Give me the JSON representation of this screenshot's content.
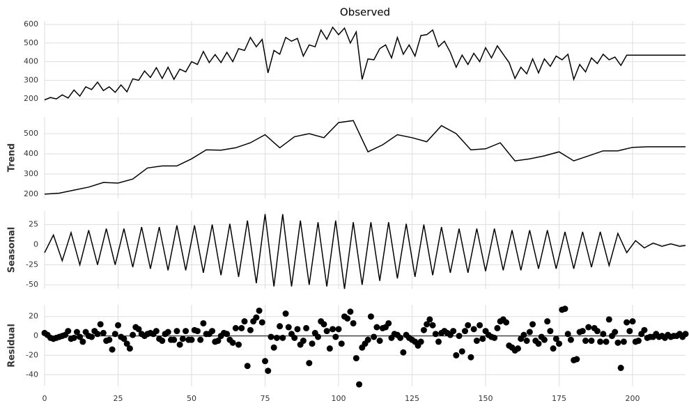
{
  "chart_data": [
    {
      "type": "line",
      "title": "Observed",
      "color": "#000000",
      "x": [
        0,
        2,
        4,
        6,
        8,
        10,
        12,
        14,
        16,
        18,
        20,
        22,
        24,
        26,
        28,
        30,
        32,
        34,
        36,
        38,
        40,
        42,
        44,
        46,
        48,
        50,
        52,
        54,
        56,
        58,
        60,
        62,
        64,
        66,
        68,
        70,
        72,
        74,
        76,
        78,
        80,
        82,
        84,
        86,
        88,
        90,
        92,
        94,
        96,
        98,
        100,
        102,
        104,
        106,
        108,
        110,
        112,
        114,
        116,
        118,
        120,
        122,
        124,
        126,
        128,
        130,
        132,
        134,
        136,
        138,
        140,
        142,
        144,
        146,
        148,
        150,
        152,
        154,
        156,
        158,
        160,
        162,
        164,
        166,
        168,
        170,
        172,
        174,
        176,
        178,
        180,
        182,
        184,
        186,
        188,
        190,
        192,
        194,
        196,
        198,
        200,
        202,
        204,
        206,
        208,
        210,
        212,
        214,
        216,
        218
      ],
      "values": [
        195,
        208,
        200,
        222,
        205,
        248,
        215,
        265,
        250,
        290,
        245,
        265,
        235,
        275,
        238,
        308,
        300,
        350,
        315,
        368,
        310,
        370,
        305,
        360,
        345,
        400,
        385,
        455,
        395,
        438,
        395,
        450,
        400,
        470,
        460,
        530,
        480,
        520,
        340,
        460,
        440,
        530,
        510,
        525,
        430,
        490,
        480,
        570,
        520,
        585,
        545,
        580,
        500,
        560,
        305,
        415,
        410,
        470,
        490,
        420,
        530,
        440,
        490,
        430,
        540,
        545,
        570,
        480,
        510,
        450,
        370,
        435,
        385,
        445,
        400,
        475,
        420,
        485,
        440,
        395,
        310,
        370,
        335,
        415,
        340,
        415,
        375,
        430,
        410,
        440,
        305,
        385,
        345,
        420,
        390,
        440,
        410,
        425,
        380,
        435,
        435,
        435,
        435,
        435,
        435,
        435,
        435,
        435,
        435,
        435
      ],
      "xlim": [
        0,
        218
      ],
      "xticks": [
        0,
        25,
        50,
        75,
        100,
        125,
        150,
        175,
        200
      ],
      "ylim": [
        178,
        619
      ],
      "yticks": [
        200,
        300,
        400,
        500,
        600
      ]
    },
    {
      "type": "line",
      "ylabel": "Trend",
      "color": "#000000",
      "x": [
        0,
        5,
        10,
        15,
        20,
        25,
        30,
        35,
        40,
        45,
        50,
        55,
        60,
        65,
        70,
        75,
        80,
        85,
        90,
        95,
        100,
        105,
        110,
        115,
        120,
        125,
        130,
        135,
        140,
        145,
        150,
        155,
        160,
        165,
        170,
        175,
        180,
        185,
        190,
        195,
        200,
        205,
        210,
        215,
        218
      ],
      "values": [
        200,
        205,
        220,
        235,
        258,
        255,
        275,
        330,
        340,
        340,
        375,
        420,
        418,
        430,
        455,
        495,
        430,
        485,
        500,
        480,
        555,
        565,
        410,
        445,
        495,
        480,
        460,
        540,
        500,
        420,
        425,
        455,
        365,
        375,
        390,
        410,
        365,
        390,
        415,
        415,
        432,
        435,
        435,
        435,
        435
      ],
      "xlim": [
        0,
        218
      ],
      "xticks": [
        0,
        25,
        50,
        75,
        100,
        125,
        150,
        175,
        200
      ],
      "ylim": [
        179,
        583
      ],
      "yticks": [
        200,
        300,
        400,
        500
      ]
    },
    {
      "type": "line",
      "ylabel": "Seasonal",
      "color": "#000000",
      "x": [
        0,
        3,
        6,
        9,
        12,
        15,
        18,
        21,
        24,
        27,
        30,
        33,
        36,
        39,
        42,
        45,
        48,
        51,
        54,
        57,
        60,
        63,
        66,
        69,
        72,
        75,
        78,
        81,
        84,
        87,
        90,
        93,
        96,
        99,
        102,
        105,
        108,
        111,
        114,
        117,
        120,
        123,
        126,
        129,
        132,
        135,
        138,
        141,
        144,
        147,
        150,
        153,
        156,
        159,
        162,
        165,
        168,
        171,
        174,
        177,
        180,
        183,
        186,
        189,
        192,
        195,
        198,
        201,
        204,
        207,
        210,
        213,
        216,
        218
      ],
      "values": [
        -10,
        12,
        -20,
        15,
        -25,
        18,
        -25,
        20,
        -25,
        20,
        -28,
        22,
        -30,
        22,
        -32,
        24,
        -32,
        24,
        -35,
        25,
        -38,
        26,
        -40,
        30,
        -48,
        38,
        -52,
        38,
        -52,
        30,
        -50,
        28,
        -52,
        30,
        -55,
        28,
        -50,
        28,
        -45,
        28,
        -42,
        26,
        -40,
        25,
        -38,
        22,
        -35,
        20,
        -35,
        20,
        -33,
        20,
        -32,
        18,
        -32,
        18,
        -30,
        18,
        -30,
        16,
        -30,
        16,
        -28,
        16,
        -26,
        14,
        -10,
        5,
        -4,
        2,
        -2,
        1,
        -2,
        -1
      ],
      "xlim": [
        0,
        218
      ],
      "xticks": [
        0,
        25,
        50,
        75,
        100,
        125,
        150,
        175,
        200
      ],
      "ylim": [
        -55,
        42
      ],
      "yticks": [
        -50,
        -25,
        0,
        25
      ]
    },
    {
      "type": "scatter",
      "ylabel": "Residual",
      "color": "#000000",
      "x": [
        0,
        1,
        2,
        3,
        4,
        5,
        6,
        7,
        8,
        9,
        10,
        11,
        12,
        13,
        14,
        15,
        16,
        17,
        18,
        19,
        20,
        21,
        22,
        23,
        24,
        25,
        26,
        27,
        28,
        29,
        30,
        31,
        32,
        33,
        34,
        35,
        36,
        37,
        38,
        39,
        40,
        41,
        42,
        43,
        44,
        45,
        46,
        47,
        48,
        49,
        50,
        51,
        52,
        53,
        54,
        55,
        56,
        57,
        58,
        59,
        60,
        61,
        62,
        63,
        64,
        65,
        66,
        67,
        68,
        69,
        70,
        71,
        72,
        73,
        74,
        75,
        76,
        77,
        78,
        79,
        80,
        81,
        82,
        83,
        84,
        85,
        86,
        87,
        88,
        89,
        90,
        91,
        92,
        93,
        94,
        95,
        96,
        97,
        98,
        99,
        100,
        101,
        102,
        103,
        104,
        105,
        106,
        107,
        108,
        109,
        110,
        111,
        112,
        113,
        114,
        115,
        116,
        117,
        118,
        119,
        120,
        121,
        122,
        123,
        124,
        125,
        126,
        127,
        128,
        129,
        130,
        131,
        132,
        133,
        134,
        135,
        136,
        137,
        138,
        139,
        140,
        141,
        142,
        143,
        144,
        145,
        146,
        147,
        148,
        149,
        150,
        151,
        152,
        153,
        154,
        155,
        156,
        157,
        158,
        159,
        160,
        161,
        162,
        163,
        164,
        165,
        166,
        167,
        168,
        169,
        170,
        171,
        172,
        173,
        174,
        175,
        176,
        177,
        178,
        179,
        180,
        181,
        182,
        183,
        184,
        185,
        186,
        187,
        188,
        189,
        190,
        191,
        192,
        193,
        194,
        195,
        196,
        197,
        198,
        199,
        200,
        201,
        202,
        203,
        204,
        205,
        206,
        207,
        208,
        209,
        210,
        211,
        212,
        213,
        214,
        215,
        216,
        217,
        218
      ],
      "values": [
        3,
        1,
        -2,
        -3,
        -2,
        -1,
        0,
        1,
        5,
        -3,
        -2,
        4,
        -1,
        -6,
        4,
        0,
        -1,
        5,
        2,
        12,
        3,
        -5,
        -4,
        -14,
        2,
        11,
        -1,
        -3,
        -8,
        -13,
        1,
        9,
        7,
        2,
        0,
        2,
        3,
        2,
        5,
        -3,
        -5,
        2,
        4,
        -4,
        -4,
        5,
        -9,
        -3,
        5,
        -4,
        -4,
        6,
        5,
        -4,
        13,
        2,
        2,
        5,
        -6,
        -5,
        0,
        3,
        2,
        -4,
        -7,
        8,
        -9,
        8,
        15,
        -31,
        6,
        15,
        19,
        26,
        14,
        -26,
        -36,
        -1,
        -12,
        -2,
        10,
        -2,
        23,
        9,
        2,
        -2,
        7,
        -9,
        -5,
        8,
        -28,
        -8,
        3,
        -1,
        15,
        12,
        5,
        -13,
        7,
        -1,
        7,
        -8,
        20,
        18,
        25,
        13,
        -23,
        -50,
        -12,
        -8,
        -4,
        20,
        -1,
        9,
        -5,
        8,
        9,
        13,
        -2,
        2,
        1,
        -2,
        -17,
        1,
        -2,
        -4,
        -6,
        -10,
        -6,
        6,
        12,
        17,
        11,
        2,
        -6,
        3,
        5,
        3,
        1,
        5,
        -20,
        0,
        -16,
        5,
        11,
        -22,
        7,
        -5,
        11,
        -3,
        5,
        1,
        -1,
        -2,
        8,
        15,
        17,
        14,
        -10,
        -12,
        -15,
        -13,
        -3,
        1,
        -5,
        4,
        12,
        -5,
        -8,
        -1,
        -4,
        15,
        5,
        -13,
        -3,
        -8,
        27,
        28,
        2,
        -4,
        -25,
        -24,
        4,
        5,
        -5,
        9,
        -5,
        8,
        5,
        -6,
        2,
        -6,
        17,
        0,
        4,
        -7,
        -33,
        -6,
        14,
        5,
        15,
        -6,
        -5,
        2,
        6,
        -2,
        -1,
        -1,
        2,
        -1,
        0,
        -2,
        1,
        -1,
        0,
        0,
        2,
        -1,
        2
      ],
      "xlim": [
        0,
        218
      ],
      "xticks": [
        0,
        25,
        50,
        75,
        100,
        125,
        150,
        175,
        200
      ],
      "ylim": [
        -52,
        32
      ],
      "yticks": [
        -40,
        -20,
        0,
        20
      ]
    }
  ]
}
